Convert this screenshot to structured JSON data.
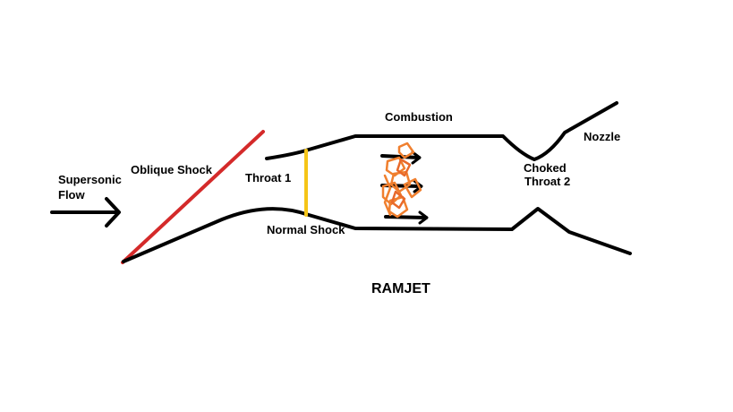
{
  "diagram": {
    "title": "RAMJET",
    "labels": {
      "supersonic_line1": "Supersonic",
      "supersonic_line2": "Flow",
      "oblique_shock": "Oblique Shock",
      "throat1": "Throat 1",
      "normal_shock": "Normal Shock",
      "combustion": "Combustion",
      "choked": "Choked",
      "throat2": "Throat 2",
      "nozzle": "Nozzle"
    },
    "colors": {
      "outline": "#000000",
      "oblique_shock": "#d42a2a",
      "normal_shock": "#f5c518",
      "flame": "#f07f2e",
      "background": "#ffffff"
    }
  }
}
